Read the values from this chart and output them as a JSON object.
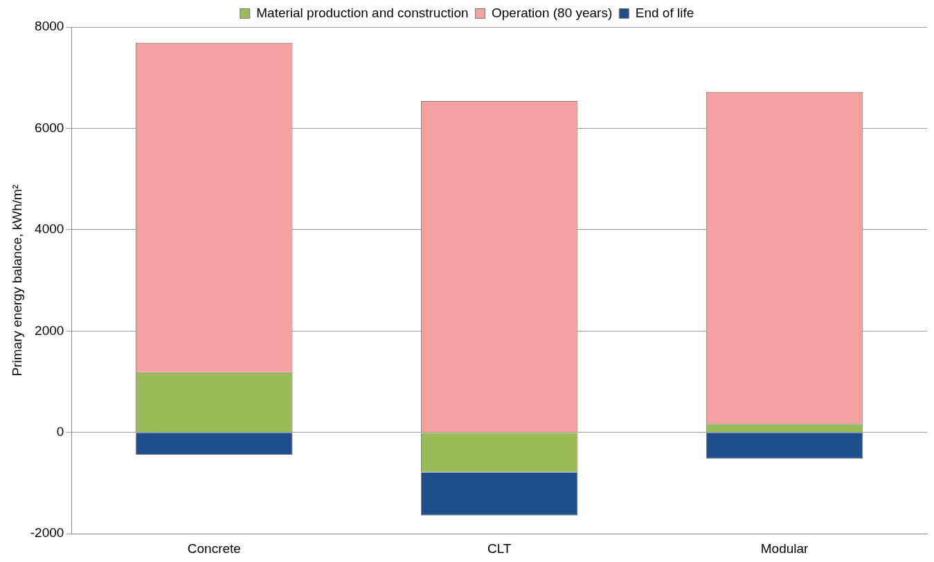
{
  "chart_data": {
    "type": "bar",
    "stacked": true,
    "ylabel": "Primary energy balance, kWh/m²",
    "categories": [
      "Concrete",
      "CLT",
      "Modular"
    ],
    "series": [
      {
        "name": "Material production and construction",
        "color": "#9bbb59",
        "values": [
          1190,
          -790,
          170
        ]
      },
      {
        "name": "Operation (80 years)",
        "color": "#f2a0a0",
        "values": [
          6500,
          6540,
          6550
        ]
      },
      {
        "name": "End of life",
        "color": "#1f4e8c",
        "values": [
          -440,
          -850,
          -520
        ]
      }
    ],
    "ylim": [
      -2000,
      8000
    ],
    "yticks": [
      -2000,
      0,
      2000,
      4000,
      6000,
      8000
    ],
    "grid": "y",
    "legend": "top"
  }
}
